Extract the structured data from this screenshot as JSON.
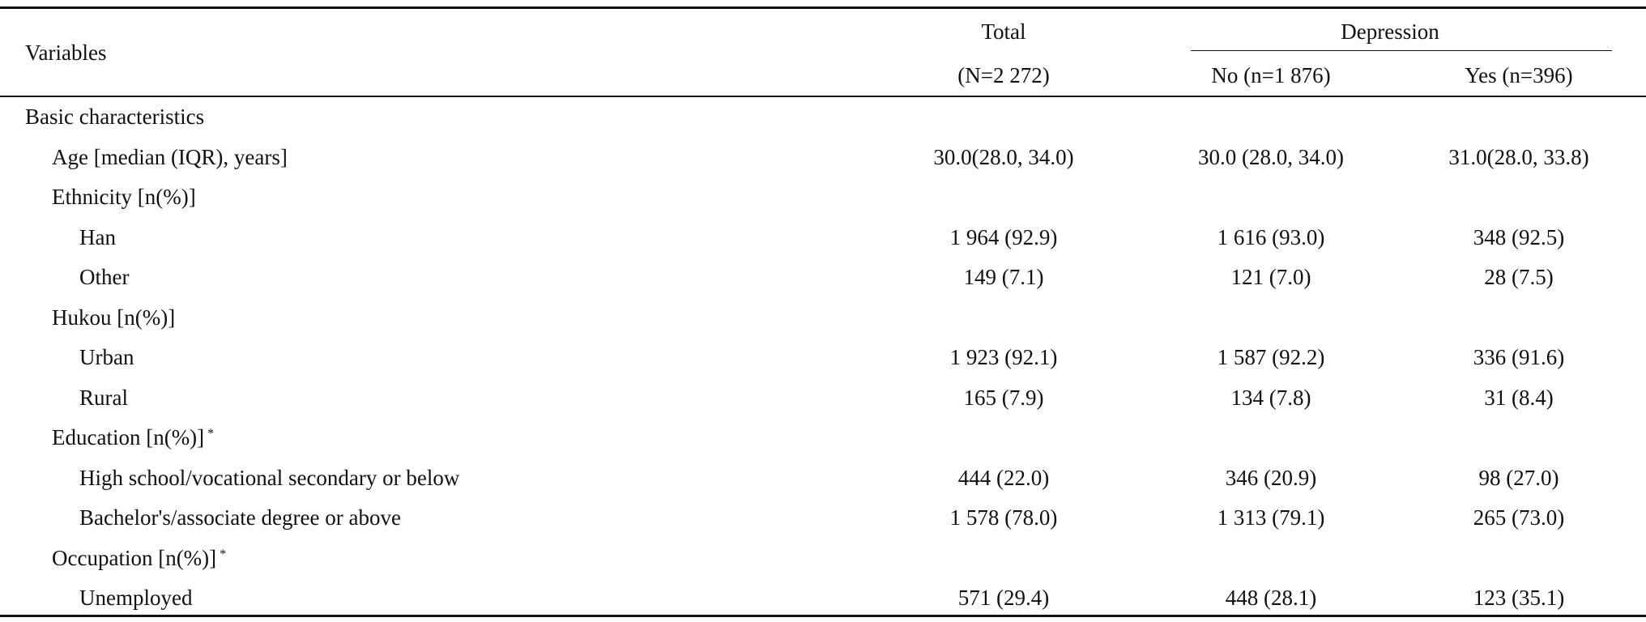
{
  "table": {
    "header": {
      "variables": "Variables",
      "total": "Total",
      "total_n": "(N=2 272)",
      "depression": "Depression",
      "no": "No (n=1 876)",
      "yes": "Yes (n=396)"
    },
    "rows": [
      {
        "label": "Basic characteristics"
      },
      {
        "label": "Age [median (IQR), years]",
        "total": "30.0(28.0, 34.0)",
        "no": "30.0 (28.0, 34.0)",
        "yes": "31.0(28.0, 33.8)"
      },
      {
        "label": "Ethnicity [n(%)]"
      },
      {
        "label": "Han",
        "total": "1 964 (92.9)",
        "no": "1 616 (93.0)",
        "yes": "348 (92.5)"
      },
      {
        "label": "Other",
        "total": "149 (7.1)",
        "no": "121 (7.0)",
        "yes": "28 (7.5)"
      },
      {
        "label": "Hukou [n(%)]"
      },
      {
        "label": "Urban",
        "total": "1 923 (92.1)",
        "no": "1 587 (92.2)",
        "yes": "336 (91.6)"
      },
      {
        "label": "Rural",
        "total": "165 (7.9)",
        "no": "134 (7.8)",
        "yes": "31 (8.4)"
      },
      {
        "label": "Education [n(%)]",
        "note": "*"
      },
      {
        "label": "High school/vocational secondary or below",
        "total": "444 (22.0)",
        "no": "346 (20.9)",
        "yes": "98 (27.0)"
      },
      {
        "label": "Bachelor's/associate degree or above",
        "total": "1 578 (78.0)",
        "no": "1 313 (79.1)",
        "yes": "265 (73.0)"
      },
      {
        "label": "Occupation [n(%)]",
        "note": "*"
      },
      {
        "label": "Unemployed",
        "total": "571 (29.4)",
        "no": "448 (28.1)",
        "yes": "123 (35.1)"
      }
    ]
  }
}
